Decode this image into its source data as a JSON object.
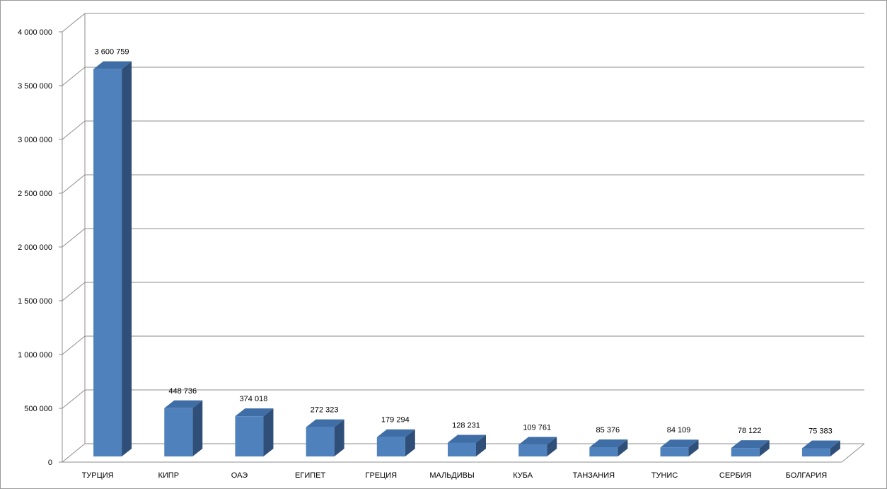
{
  "chart_data": {
    "type": "bar",
    "categories": [
      "ТУРЦИЯ",
      "КИПР",
      "ОАЭ",
      "ЕГИПЕТ",
      "ГРЕЦИЯ",
      "МАЛЬДИВЫ",
      "КУБА",
      "ТАНЗАНИЯ",
      "ТУНИС",
      "СЕРБИЯ",
      "БОЛГАРИЯ"
    ],
    "values": [
      3600759,
      448736,
      374018,
      272323,
      179294,
      128231,
      109761,
      85376,
      84109,
      78122,
      75383
    ],
    "value_labels": [
      "3 600 759",
      "448 736",
      "374 018",
      "272 323",
      "179 294",
      "128 231",
      "109 761",
      "85 376",
      "84 109",
      "78 122",
      "75 383"
    ],
    "yticks": [
      0,
      500000,
      1000000,
      1500000,
      2000000,
      2500000,
      3000000,
      3500000,
      4000000
    ],
    "ytick_labels": [
      "0",
      "500 000",
      "1 000 000",
      "1 500 000",
      "2 000 000",
      "2 500 000",
      "3 000 000",
      "3 500 000",
      "4 000 000"
    ],
    "ylim": [
      0,
      4000000
    ],
    "grid": true,
    "three_d": true,
    "colors": {
      "bar_front": "#4f81bd",
      "bar_top": "#3f6ea6",
      "bar_side": "#2f4f78",
      "grid": "#8c8c8c",
      "axis": "#8c8c8c"
    }
  }
}
